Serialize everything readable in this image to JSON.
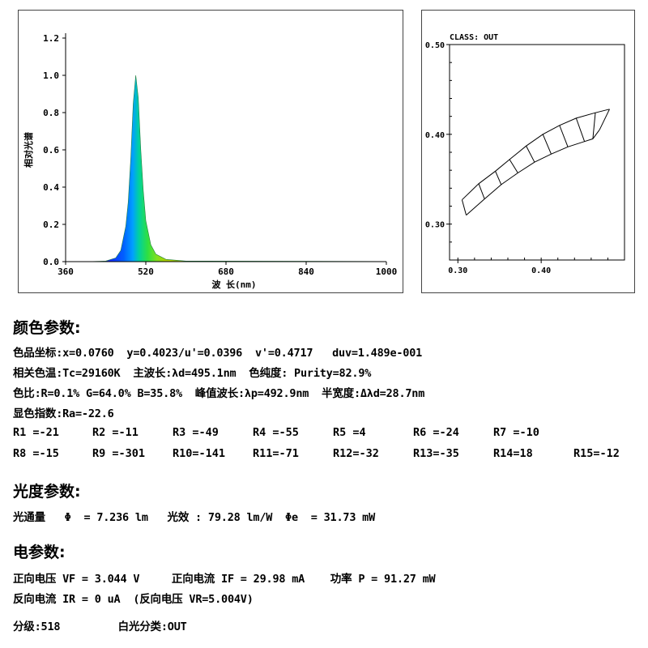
{
  "chart_data": [
    {
      "type": "line",
      "x": [
        360,
        400,
        440,
        460,
        470,
        480,
        485,
        490,
        495,
        500,
        505,
        510,
        515,
        520,
        530,
        540,
        560,
        600,
        1000
      ],
      "series": [
        {
          "values": [
            0.0,
            0.0,
            0.003,
            0.02,
            0.06,
            0.19,
            0.32,
            0.55,
            0.85,
            1.0,
            0.88,
            0.6,
            0.38,
            0.22,
            0.09,
            0.04,
            0.012,
            0.003,
            0.001
          ]
        }
      ],
      "xlabel": "波 长(nm)",
      "ylabel": "相对光谱",
      "xlim": [
        360,
        1000
      ],
      "ylim": [
        0,
        1.2
      ],
      "xticks": [
        "360",
        "520",
        "680",
        "840",
        "1000"
      ],
      "yticks": [
        "0.0",
        "0.2",
        "0.4",
        "0.6",
        "0.8",
        "1.0",
        "1.2"
      ],
      "grid": false
    },
    {
      "type": "line",
      "title": "CLASS: OUT",
      "xlim": [
        0.29,
        0.5
      ],
      "ylim": [
        0.26,
        0.5
      ],
      "xticks": [
        "0.30",
        "0.40"
      ],
      "yticks": [
        "0.30",
        "0.40",
        "0.50"
      ],
      "bins_top": [
        [
          0.305,
          0.327
        ],
        [
          0.325,
          0.345
        ],
        [
          0.345,
          0.359
        ],
        [
          0.362,
          0.372
        ],
        [
          0.382,
          0.387
        ],
        [
          0.402,
          0.4
        ],
        [
          0.422,
          0.41
        ],
        [
          0.442,
          0.418
        ],
        [
          0.465,
          0.424
        ],
        [
          0.482,
          0.428
        ]
      ],
      "bins_bottom": [
        [
          0.31,
          0.31
        ],
        [
          0.332,
          0.328
        ],
        [
          0.352,
          0.344
        ],
        [
          0.372,
          0.357
        ],
        [
          0.392,
          0.369
        ],
        [
          0.412,
          0.378
        ],
        [
          0.432,
          0.386
        ],
        [
          0.452,
          0.392
        ],
        [
          0.462,
          0.395
        ],
        [
          0.47,
          0.405
        ]
      ],
      "grid": false
    }
  ],
  "sections": {
    "color_title": "颜色参数:",
    "color_lines": [
      "色品坐标:x=0.0760  y=0.4023/u'=0.0396  v'=0.4717   duv=1.489e-001",
      "相关色温:Tc=29160K  主波长:λd=495.1nm  色纯度: Purity=82.9%",
      "色比:R=0.1% G=64.0% B=35.8%  峰值波长:λp=492.9nm  半宽度:Δλd=28.7nm",
      "显色指数:Ra=-22.6"
    ],
    "r_row1": [
      "R1 =-21",
      "R2 =-11",
      "R3 =-49",
      "R4 =-55",
      "R5 =4",
      "R6 =-24",
      "R7 =-10"
    ],
    "r_row2": [
      "R8 =-15",
      "R9 =-301",
      "R10=-141",
      "R11=-71",
      "R12=-32",
      "R13=-35",
      "R14=18",
      "R15=-12"
    ],
    "photo_title": "光度参数:",
    "photo_line": "光通量   Φ  = 7.236 lm   光效 : 79.28 lm/W  Φe  = 31.73 mW",
    "elec_title": "电参数:",
    "elec_lines": [
      "正向电压 VF = 3.044 V     正向电流 IF = 29.98 mA    功率 P = 91.27 mW",
      "反向电流 IR = 0 uA  (反向电压 VR=5.004V)"
    ],
    "grade_line": "分级:518         白光分类:OUT"
  }
}
